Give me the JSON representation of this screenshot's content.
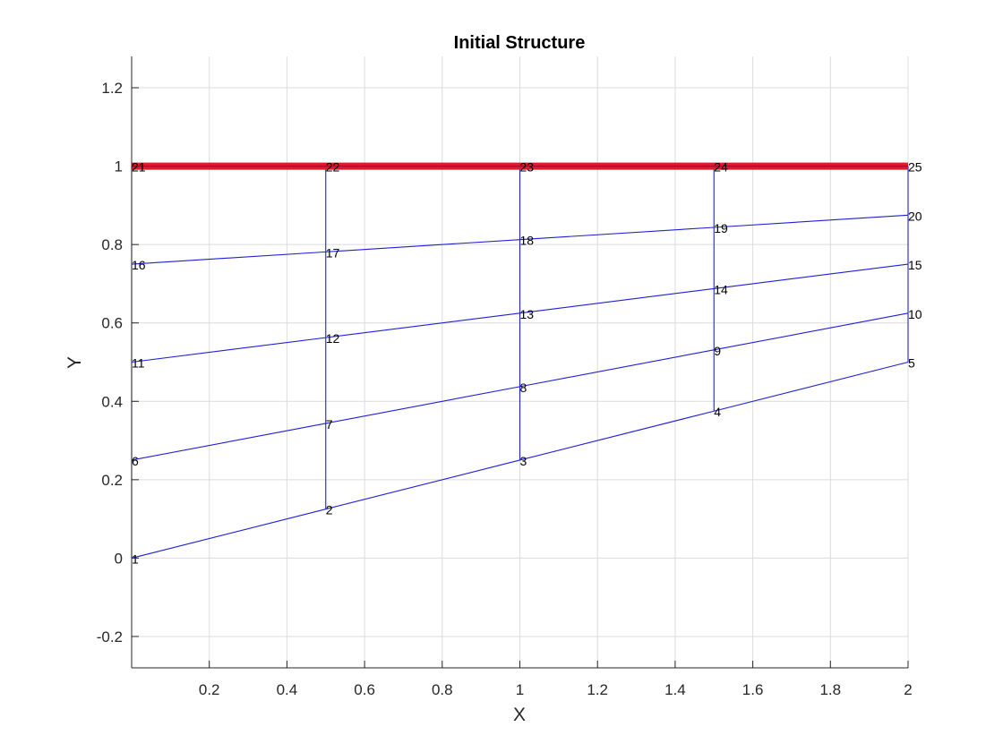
{
  "chart_data": {
    "type": "line",
    "title": "Initial Structure",
    "xlabel": "X",
    "ylabel": "Y",
    "xlim": [
      0,
      2
    ],
    "ylim": [
      -0.28,
      1.28
    ],
    "xticks": [
      0.2,
      0.4,
      0.6,
      0.8,
      1,
      1.2,
      1.4,
      1.6,
      1.8,
      2
    ],
    "xtick_labels": [
      "0.2",
      "0.4",
      "0.6",
      "0.8",
      "1",
      "1.2",
      "1.4",
      "1.6",
      "1.8",
      "2"
    ],
    "yticks": [
      -0.2,
      0,
      0.2,
      0.4,
      0.6,
      0.8,
      1,
      1.2
    ],
    "ytick_labels": [
      "-0.2",
      "0",
      "0.2",
      "0.4",
      "0.6",
      "0.8",
      "1",
      "1.2"
    ],
    "grid": true,
    "colors": {
      "element": "#1f1fd6",
      "fixed_boundary": "#e01a2e",
      "axis": "#262626",
      "grid": "#dcdcdc"
    },
    "nodes": [
      {
        "id": "1",
        "x": 0,
        "y": 0
      },
      {
        "id": "2",
        "x": 0.5,
        "y": 0.125
      },
      {
        "id": "3",
        "x": 1,
        "y": 0.25
      },
      {
        "id": "4",
        "x": 1.5,
        "y": 0.375
      },
      {
        "id": "5",
        "x": 2,
        "y": 0.5
      },
      {
        "id": "6",
        "x": 0,
        "y": 0.25
      },
      {
        "id": "7",
        "x": 0.5,
        "y": 0.34375
      },
      {
        "id": "8",
        "x": 1,
        "y": 0.4375
      },
      {
        "id": "9",
        "x": 1.5,
        "y": 0.53125
      },
      {
        "id": "10",
        "x": 2,
        "y": 0.625
      },
      {
        "id": "11",
        "x": 0,
        "y": 0.5
      },
      {
        "id": "12",
        "x": 0.5,
        "y": 0.5625
      },
      {
        "id": "13",
        "x": 1,
        "y": 0.625
      },
      {
        "id": "14",
        "x": 1.5,
        "y": 0.6875
      },
      {
        "id": "15",
        "x": 2,
        "y": 0.75
      },
      {
        "id": "16",
        "x": 0,
        "y": 0.75
      },
      {
        "id": "17",
        "x": 0.5,
        "y": 0.78125
      },
      {
        "id": "18",
        "x": 1,
        "y": 0.8125
      },
      {
        "id": "19",
        "x": 1.5,
        "y": 0.84375
      },
      {
        "id": "20",
        "x": 2,
        "y": 0.875
      },
      {
        "id": "21",
        "x": 0,
        "y": 1
      },
      {
        "id": "22",
        "x": 0.5,
        "y": 1
      },
      {
        "id": "23",
        "x": 1,
        "y": 1
      },
      {
        "id": "24",
        "x": 1.5,
        "y": 1
      },
      {
        "id": "25",
        "x": 2,
        "y": 1
      }
    ],
    "horizontal_elements": [
      [
        "1",
        "2",
        "3",
        "4",
        "5"
      ],
      [
        "6",
        "7",
        "8",
        "9",
        "10"
      ],
      [
        "11",
        "12",
        "13",
        "14",
        "15"
      ],
      [
        "16",
        "17",
        "18",
        "19",
        "20"
      ]
    ],
    "vertical_elements": [
      [
        "1",
        "6",
        "11",
        "16",
        "21"
      ],
      [
        "2",
        "7",
        "12",
        "17",
        "22"
      ],
      [
        "3",
        "8",
        "13",
        "18",
        "23"
      ],
      [
        "4",
        "9",
        "14",
        "19",
        "24"
      ],
      [
        "5",
        "10",
        "15",
        "20",
        "25"
      ]
    ],
    "fixed_boundary": [
      "21",
      "22",
      "23",
      "24",
      "25"
    ]
  }
}
